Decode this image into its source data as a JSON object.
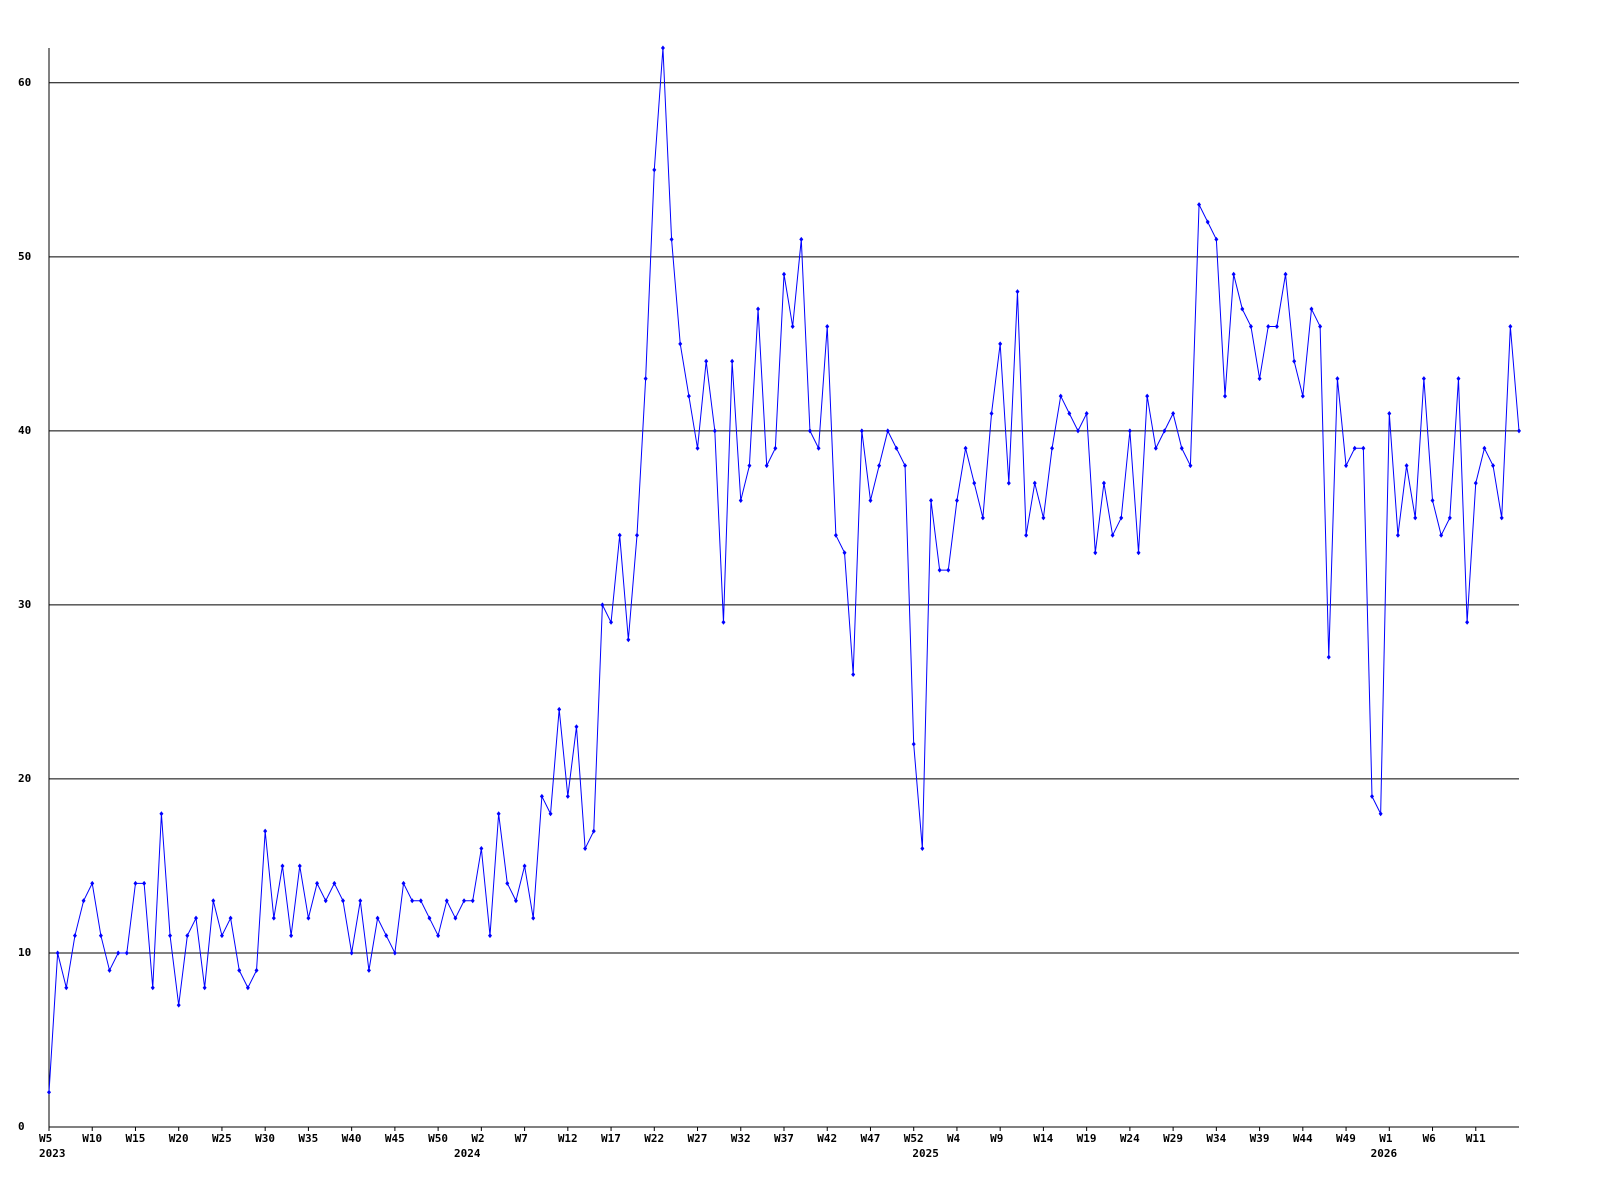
{
  "chart_data": {
    "type": "line",
    "series": [
      {
        "color": "#0000ff",
        "values": [
          2,
          10,
          8,
          11,
          13,
          14,
          11,
          9,
          10,
          10,
          14,
          14,
          8,
          18,
          11,
          7,
          11,
          12,
          8,
          13,
          11,
          12,
          9,
          8,
          9,
          17,
          12,
          15,
          11,
          15,
          12,
          14,
          13,
          14,
          13,
          10,
          13,
          9,
          12,
          11,
          10,
          14,
          13,
          13,
          12,
          11,
          13,
          12,
          13,
          13,
          16,
          11,
          18,
          14,
          13,
          15,
          12,
          19,
          18,
          24,
          19,
          23,
          16,
          17,
          30,
          29,
          34,
          28,
          34,
          43,
          55,
          62,
          51,
          45,
          42,
          39,
          44,
          40,
          29,
          44,
          36,
          38,
          47,
          38,
          39,
          49,
          46,
          51,
          40,
          39,
          46,
          34,
          33,
          26,
          40,
          36,
          38,
          40,
          39,
          38,
          22,
          16,
          36,
          32,
          32,
          36,
          39,
          37,
          35,
          41,
          45,
          37,
          48,
          34,
          37,
          35,
          39,
          42,
          41,
          40,
          41,
          33,
          37,
          34,
          35,
          40,
          33,
          42,
          39,
          40,
          41,
          39,
          38,
          53,
          52,
          51,
          42,
          49,
          47,
          46,
          43,
          46,
          46,
          49,
          44,
          42,
          47,
          46,
          27,
          43,
          38,
          39,
          39,
          19,
          18,
          41,
          34,
          38,
          35,
          43,
          36,
          34,
          35,
          43,
          29,
          37,
          39,
          38,
          35,
          46,
          40
        ]
      }
    ],
    "xlim": [
      0,
      170
    ],
    "xticks": [
      {
        "value": 0,
        "label": "W5"
      },
      {
        "value": 5,
        "label": "W10"
      },
      {
        "value": 10,
        "label": "W15"
      },
      {
        "value": 15,
        "label": "W20"
      },
      {
        "value": 20,
        "label": "W25"
      },
      {
        "value": 25,
        "label": "W30"
      },
      {
        "value": 30,
        "label": "W35"
      },
      {
        "value": 35,
        "label": "W40"
      },
      {
        "value": 40,
        "label": "W45"
      },
      {
        "value": 45,
        "label": "W50"
      },
      {
        "value": 50,
        "label": "W2"
      },
      {
        "value": 55,
        "label": "W7"
      },
      {
        "value": 60,
        "label": "W12"
      },
      {
        "value": 65,
        "label": "W17"
      },
      {
        "value": 70,
        "label": "W22"
      },
      {
        "value": 75,
        "label": "W27"
      },
      {
        "value": 80,
        "label": "W32"
      },
      {
        "value": 85,
        "label": "W37"
      },
      {
        "value": 90,
        "label": "W42"
      },
      {
        "value": 95,
        "label": "W47"
      },
      {
        "value": 100,
        "label": "W52"
      },
      {
        "value": 105,
        "label": "W4"
      },
      {
        "value": 110,
        "label": "W9"
      },
      {
        "value": 115,
        "label": "W14"
      },
      {
        "value": 120,
        "label": "W19"
      },
      {
        "value": 125,
        "label": "W24"
      },
      {
        "value": 130,
        "label": "W29"
      },
      {
        "value": 135,
        "label": "W34"
      },
      {
        "value": 140,
        "label": "W39"
      },
      {
        "value": 145,
        "label": "W44"
      },
      {
        "value": 150,
        "label": "W49"
      },
      {
        "value": 155,
        "label": "W1"
      },
      {
        "value": 160,
        "label": "W6"
      },
      {
        "value": 165,
        "label": "W11"
      }
    ],
    "year_ticks": [
      {
        "value": 0,
        "label": "2023"
      },
      {
        "value": 48,
        "label": "2024"
      },
      {
        "value": 101,
        "label": "2025"
      },
      {
        "value": 154,
        "label": "2026"
      }
    ],
    "ylim": [
      0,
      62
    ],
    "yticks": [
      0,
      10,
      20,
      30,
      40,
      50,
      60
    ],
    "grid": true
  }
}
